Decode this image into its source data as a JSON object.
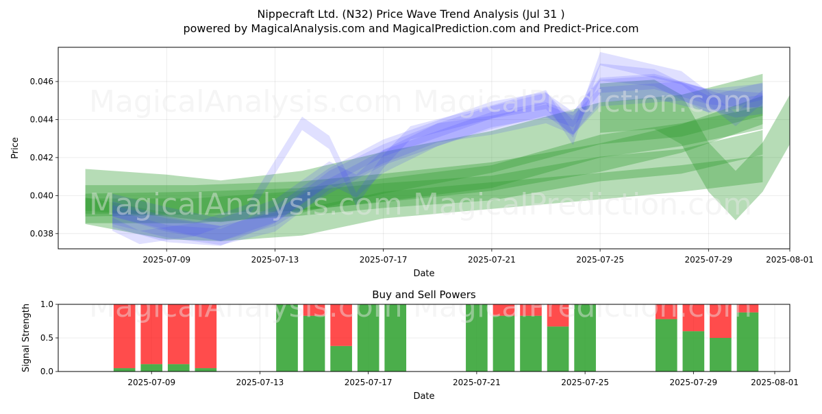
{
  "title": {
    "line1": "Nippecraft Ltd. (N32) Price Wave Trend Analysis (Jul 31 )",
    "line2": "powered by MagicalAnalysis.com and MagicalPrediction.com and Predict-Price.com"
  },
  "watermarks": {
    "left": "MagicalAnalysis.com",
    "right": "MagicalPrediction.com"
  },
  "colors": {
    "blue_band": "#4040ff",
    "green_band": "#2e9b2e",
    "buy": "#2ca02c",
    "sell": "#ff0000"
  },
  "chart_data": [
    {
      "type": "area",
      "name": "price-wave-trend",
      "xlabel": "Date",
      "ylabel": "Price",
      "x_range": [
        "2025-07-05",
        "2025-08-01"
      ],
      "ylim": [
        0.0372,
        0.0478
      ],
      "x_ticks": [
        "2025-07-09",
        "2025-07-13",
        "2025-07-17",
        "2025-07-21",
        "2025-07-25",
        "2025-07-29",
        "2025-08-01"
      ],
      "y_ticks": [
        "0.038",
        "0.040",
        "0.042",
        "0.044",
        "0.046"
      ],
      "grid": true,
      "blue_waves": [
        {
          "x": [
            "2025-07-07",
            "2025-07-09",
            "2025-07-11",
            "2025-07-13",
            "2025-07-15",
            "2025-07-17",
            "2025-07-19",
            "2025-07-21",
            "2025-07-23",
            "2025-07-24",
            "2025-07-25",
            "2025-07-27",
            "2025-07-29",
            "2025-07-31"
          ],
          "y": [
            0.0393,
            0.0385,
            0.038,
            0.0388,
            0.0405,
            0.042,
            0.043,
            0.044,
            0.0445,
            0.044,
            0.0458,
            0.046,
            0.0452,
            0.045
          ],
          "width": 0.0008
        },
        {
          "x": [
            "2025-07-07",
            "2025-07-09",
            "2025-07-11",
            "2025-07-13",
            "2025-07-15",
            "2025-07-17",
            "2025-07-19",
            "2025-07-21",
            "2025-07-23",
            "2025-07-24",
            "2025-07-25",
            "2025-07-27",
            "2025-07-29",
            "2025-07-31"
          ],
          "y": [
            0.0388,
            0.038,
            0.0378,
            0.039,
            0.041,
            0.0425,
            0.0435,
            0.0445,
            0.045,
            0.0435,
            0.0465,
            0.0462,
            0.0448,
            0.0455
          ],
          "width": 0.0009
        },
        {
          "x": [
            "2025-07-07",
            "2025-07-08",
            "2025-07-10",
            "2025-07-12",
            "2025-07-14",
            "2025-07-15",
            "2025-07-16",
            "2025-07-17",
            "2025-07-18",
            "2025-07-21",
            "2025-07-23",
            "2025-07-24",
            "2025-07-25",
            "2025-07-28",
            "2025-07-30",
            "2025-07-31"
          ],
          "y": [
            0.0385,
            0.0378,
            0.0382,
            0.0392,
            0.0438,
            0.0428,
            0.0398,
            0.0418,
            0.0433,
            0.0444,
            0.0452,
            0.043,
            0.0472,
            0.0462,
            0.044,
            0.0452
          ],
          "width": 0.0007
        },
        {
          "x": [
            "2025-07-07",
            "2025-07-09",
            "2025-07-11",
            "2025-07-13",
            "2025-07-15",
            "2025-07-16",
            "2025-07-17",
            "2025-07-19",
            "2025-07-21",
            "2025-07-23",
            "2025-07-24",
            "2025-07-25",
            "2025-07-27",
            "2025-07-29",
            "2025-07-31"
          ],
          "y": [
            0.0395,
            0.0388,
            0.0382,
            0.0392,
            0.0412,
            0.0405,
            0.0418,
            0.0432,
            0.0441,
            0.0448,
            0.0438,
            0.0455,
            0.0457,
            0.045,
            0.0453
          ],
          "width": 0.0012
        },
        {
          "x": [
            "2025-07-07",
            "2025-07-09",
            "2025-07-11",
            "2025-07-13",
            "2025-07-15",
            "2025-07-17",
            "2025-07-19",
            "2025-07-21",
            "2025-07-23",
            "2025-07-24",
            "2025-07-25",
            "2025-07-28",
            "2025-07-30",
            "2025-07-31"
          ],
          "y": [
            0.039,
            0.0383,
            0.0379,
            0.0386,
            0.0408,
            0.0422,
            0.0433,
            0.0437,
            0.0443,
            0.0437,
            0.0452,
            0.0455,
            0.0446,
            0.0448
          ],
          "width": 0.001
        }
      ],
      "green_waves": [
        {
          "x": [
            "2025-07-06",
            "2025-07-09",
            "2025-07-11",
            "2025-07-14",
            "2025-07-17",
            "2025-07-21",
            "2025-07-25",
            "2025-07-28",
            "2025-07-31"
          ],
          "y": [
            0.0403,
            0.04,
            0.0397,
            0.0402,
            0.0412,
            0.0423,
            0.0438,
            0.0442,
            0.0453
          ],
          "width": 0.0022
        },
        {
          "x": [
            "2025-07-06",
            "2025-07-10",
            "2025-07-14",
            "2025-07-17",
            "2025-07-21",
            "2025-07-25",
            "2025-07-28",
            "2025-07-31"
          ],
          "y": [
            0.0398,
            0.0398,
            0.04,
            0.0404,
            0.041,
            0.042,
            0.043,
            0.0445
          ],
          "width": 0.0015
        },
        {
          "x": [
            "2025-07-06",
            "2025-07-10",
            "2025-07-14",
            "2025-07-17",
            "2025-07-21",
            "2025-07-25",
            "2025-07-28",
            "2025-07-31"
          ],
          "y": [
            0.0395,
            0.0396,
            0.0398,
            0.0403,
            0.041,
            0.0426,
            0.0432,
            0.0441
          ],
          "width": 0.0012
        },
        {
          "x": [
            "2025-07-06",
            "2025-07-10",
            "2025-07-14",
            "2025-07-17",
            "2025-07-21",
            "2025-07-25",
            "2025-07-28",
            "2025-07-31"
          ],
          "y": [
            0.0392,
            0.0392,
            0.0396,
            0.04,
            0.0404,
            0.0414,
            0.0418,
            0.0428
          ],
          "width": 0.0013
        },
        {
          "x": [
            "2025-07-06",
            "2025-07-09",
            "2025-07-11",
            "2025-07-14",
            "2025-07-17",
            "2025-07-21",
            "2025-07-25",
            "2025-07-28",
            "2025-07-31"
          ],
          "y": [
            0.0392,
            0.0384,
            0.0383,
            0.0386,
            0.0395,
            0.04,
            0.0405,
            0.0409,
            0.0414
          ],
          "width": 0.0014
        },
        {
          "x": [
            "2025-07-25",
            "2025-07-27",
            "2025-07-28",
            "2025-07-29",
            "2025-07-30",
            "2025-07-31",
            "2025-08-01"
          ],
          "y": [
            0.0446,
            0.0448,
            0.044,
            0.0415,
            0.04,
            0.0415,
            0.044
          ],
          "width": 0.0026
        }
      ]
    },
    {
      "type": "bar",
      "name": "buy-sell-powers",
      "title": "Buy and Sell Powers",
      "xlabel": "Date",
      "ylabel": "Signal Strength",
      "ylim": [
        0,
        1.0
      ],
      "y_ticks": [
        "0.0",
        "0.5",
        "1.0"
      ],
      "x_ticks": [
        "2025-07-09",
        "2025-07-13",
        "2025-07-17",
        "2025-07-21",
        "2025-07-25",
        "2025-07-29",
        "2025-08-01"
      ],
      "grid": true,
      "categories": [
        "2025-07-08",
        "2025-07-09",
        "2025-07-10",
        "2025-07-11",
        "2025-07-14",
        "2025-07-15",
        "2025-07-16",
        "2025-07-17",
        "2025-07-18",
        "2025-07-21",
        "2025-07-22",
        "2025-07-23",
        "2025-07-24",
        "2025-07-25",
        "2025-07-28",
        "2025-07-29",
        "2025-07-30",
        "2025-07-31"
      ],
      "series": [
        {
          "name": "Buy",
          "values": [
            0.05,
            0.11,
            0.11,
            0.05,
            1.0,
            0.83,
            0.38,
            1.0,
            1.0,
            1.0,
            0.83,
            0.83,
            0.67,
            1.0,
            0.78,
            0.6,
            0.5,
            0.88
          ]
        },
        {
          "name": "Sell",
          "values": [
            0.95,
            0.89,
            0.89,
            0.95,
            0.0,
            0.17,
            0.62,
            0.0,
            0.0,
            0.0,
            0.17,
            0.17,
            0.33,
            0.0,
            0.22,
            0.4,
            0.5,
            0.12
          ]
        }
      ]
    }
  ]
}
